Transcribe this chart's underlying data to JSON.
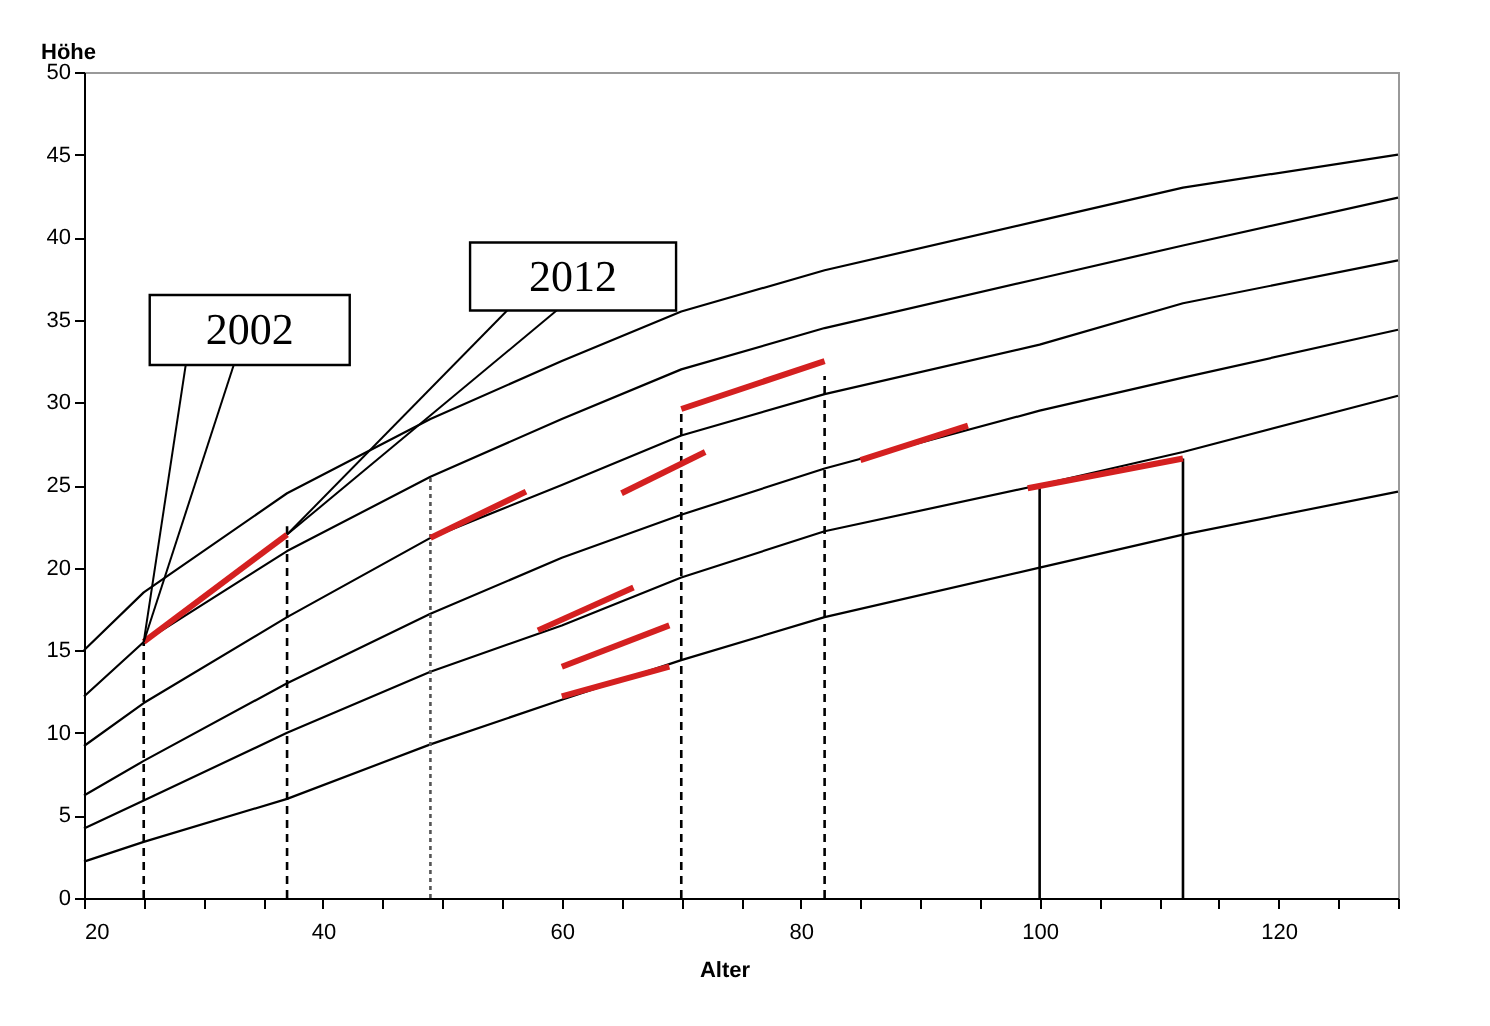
{
  "chart_data": {
    "type": "line",
    "xlabel": "Alter",
    "ylabel": "Höhe",
    "xlim": [
      20,
      130
    ],
    "ylim": [
      0,
      50
    ],
    "xticks": [
      20,
      {
        "value": 25,
        "label": null
      },
      {
        "value": 30,
        "label": null
      },
      {
        "value": 35,
        "label": null
      },
      40,
      {
        "value": 45,
        "label": null
      },
      {
        "value": 50,
        "label": null
      },
      {
        "value": 55,
        "label": null
      },
      60,
      {
        "value": 65,
        "label": null
      },
      {
        "value": 70,
        "label": null
      },
      {
        "value": 75,
        "label": null
      },
      80,
      {
        "value": 85,
        "label": null
      },
      {
        "value": 90,
        "label": null
      },
      {
        "value": 95,
        "label": null
      },
      100,
      {
        "value": 105,
        "label": null
      },
      {
        "value": 110,
        "label": null
      },
      {
        "value": 115,
        "label": null
      },
      120,
      {
        "value": 125,
        "label": null
      },
      {
        "value": 130,
        "label": null
      }
    ],
    "yticks": [
      0,
      5,
      10,
      15,
      20,
      25,
      30,
      35,
      40,
      45,
      50
    ],
    "x": [
      20,
      25,
      37,
      49,
      60,
      70,
      82,
      100,
      112,
      130
    ],
    "series": [
      {
        "color": "#000000",
        "values": [
          15,
          18.5,
          24.5,
          29,
          32.5,
          35.5,
          38,
          41,
          43,
          45
        ]
      },
      {
        "color": "#000000",
        "values": [
          12.2,
          15.5,
          21,
          25.5,
          29,
          32,
          34.5,
          37.5,
          39.5,
          42.4
        ]
      },
      {
        "color": "#000000",
        "values": [
          9.2,
          11.8,
          17,
          21.8,
          25,
          28,
          30.5,
          33.5,
          36,
          38.6
        ]
      },
      {
        "color": "#000000",
        "values": [
          6.2,
          8.3,
          13,
          17.2,
          20.6,
          23.2,
          26,
          29.5,
          31.5,
          34.4
        ]
      },
      {
        "color": "#000000",
        "values": [
          4.2,
          5.9,
          10,
          13.7,
          16.5,
          19.4,
          22.2,
          25,
          27,
          30.4
        ]
      },
      {
        "color": "#000000",
        "values": [
          2.2,
          3.4,
          6,
          9.3,
          12,
          14.4,
          17,
          20,
          22,
          24.6
        ]
      },
      {
        "color": "#000000",
        "line_style": "dashed",
        "x": [
          25,
          25
        ],
        "values": [
          0,
          15.5
        ]
      },
      {
        "color": "#000000",
        "line_style": "dashed",
        "x": [
          37,
          37
        ],
        "values": [
          0,
          22.5
        ]
      },
      {
        "color": "#555555",
        "line_style": "dotted",
        "x": [
          49,
          49
        ],
        "values": [
          0,
          25.5
        ]
      },
      {
        "color": "#000000",
        "line_style": "dashed",
        "x": [
          70,
          70
        ],
        "values": [
          0,
          29.5
        ]
      },
      {
        "color": "#000000",
        "line_style": "dashed",
        "x": [
          82,
          82
        ],
        "values": [
          0,
          31.6
        ]
      },
      {
        "color": "#000000",
        "line_style": "solid",
        "x": [
          100,
          100
        ],
        "values": [
          0,
          25
        ]
      },
      {
        "color": "#000000",
        "line_style": "solid",
        "x": [
          112,
          112
        ],
        "values": [
          0,
          26.6
        ]
      },
      {
        "color": "#d42020",
        "x": [
          25,
          37
        ],
        "values": [
          15.5,
          22
        ]
      },
      {
        "color": "#d42020",
        "x": [
          49,
          57
        ],
        "values": [
          21.8,
          24.6
        ]
      },
      {
        "color": "#d42020",
        "x": [
          58,
          66
        ],
        "values": [
          16.2,
          18.8
        ]
      },
      {
        "color": "#d42020",
        "x": [
          60,
          69
        ],
        "values": [
          14,
          16.5
        ]
      },
      {
        "color": "#d42020",
        "x": [
          60,
          69
        ],
        "values": [
          12.2,
          14
        ]
      },
      {
        "color": "#d42020",
        "x": [
          65,
          72
        ],
        "values": [
          24.5,
          27
        ]
      },
      {
        "color": "#d42020",
        "x": [
          70,
          82
        ],
        "values": [
          29.6,
          32.5
        ]
      },
      {
        "color": "#d42020",
        "x": [
          85,
          94
        ],
        "values": [
          26.5,
          28.6
        ]
      },
      {
        "color": "#d42020",
        "x": [
          99,
          112
        ],
        "values": [
          24.8,
          26.6
        ]
      }
    ],
    "annotations": [
      {
        "text": "2002",
        "x": 25,
        "y": 15.5
      },
      {
        "text": "2012",
        "x": 37,
        "y": 22
      }
    ]
  }
}
